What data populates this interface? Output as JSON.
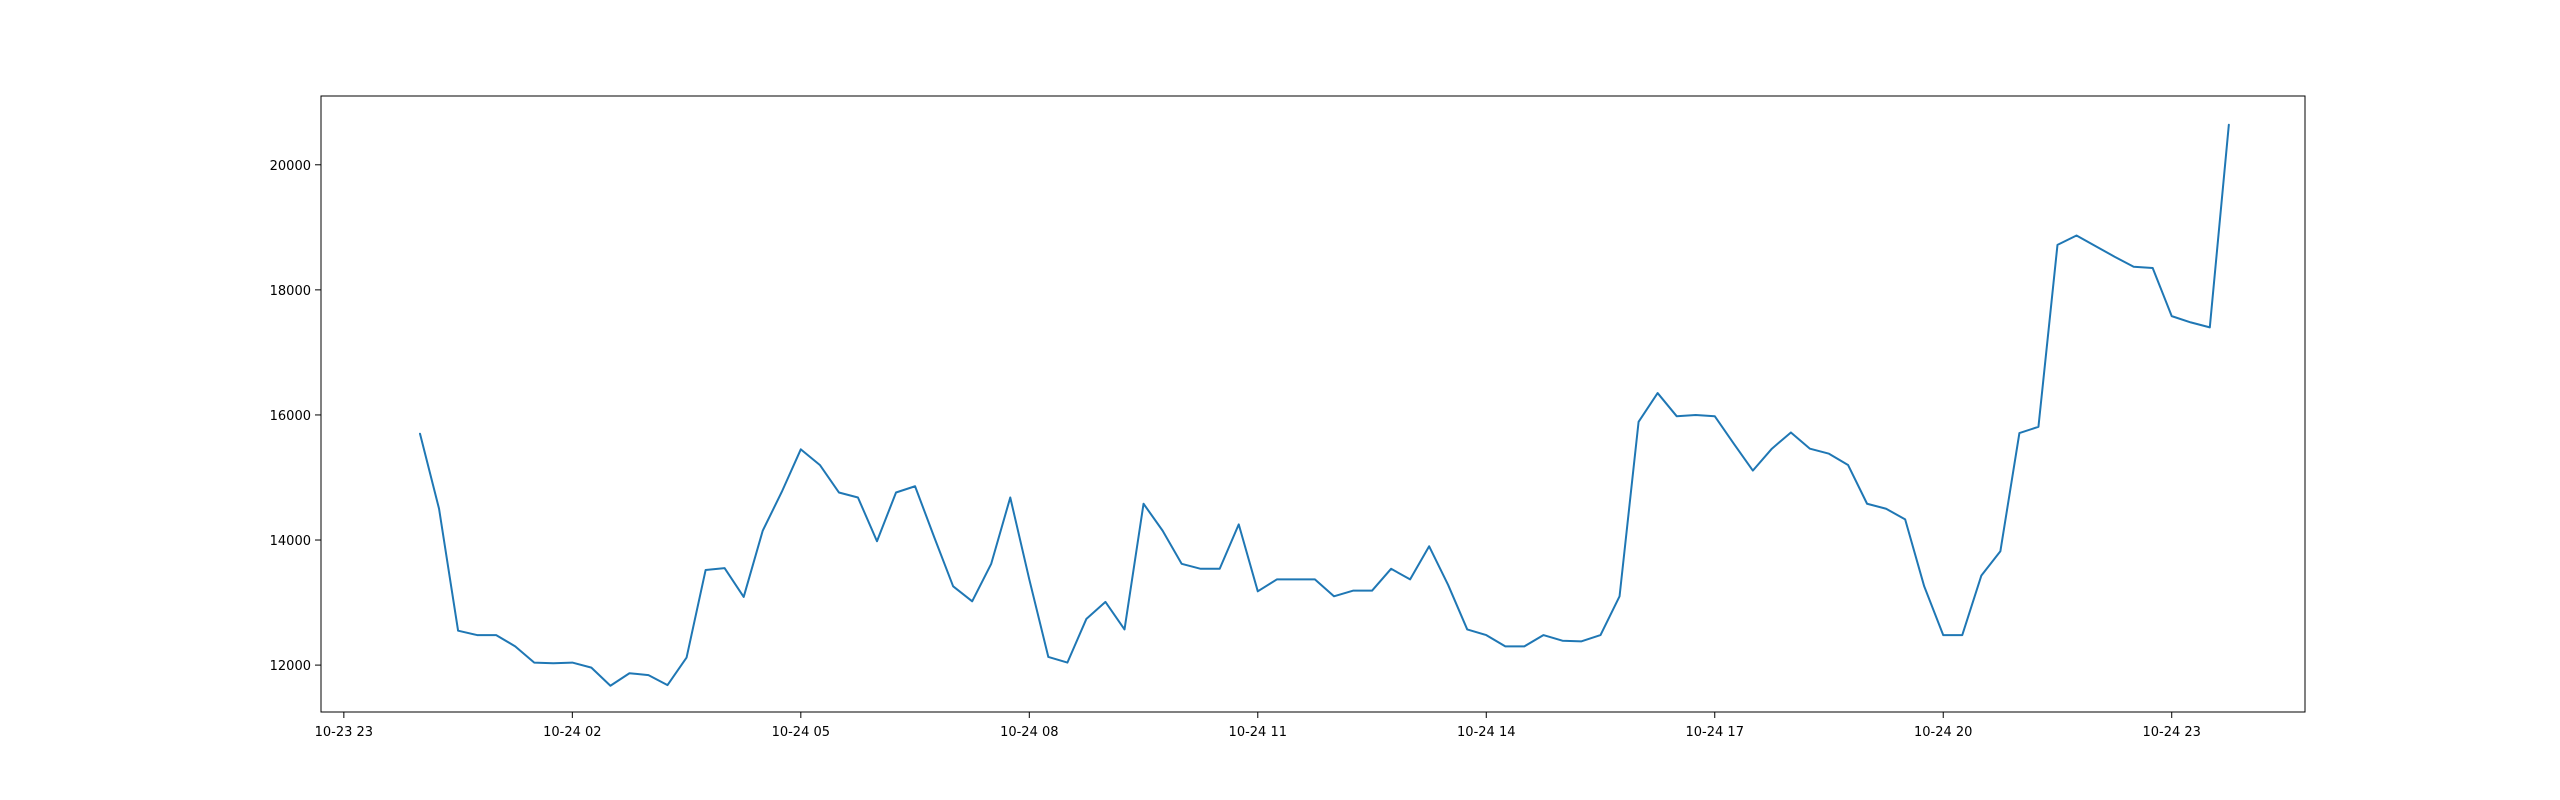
{
  "chart_data": {
    "type": "line",
    "title": "",
    "xlabel": "",
    "ylabel": "",
    "x_unit": "hours",
    "xlim": [
      -0.3,
      25.75
    ],
    "ylim": [
      11250,
      21100
    ],
    "grid": false,
    "legend": "none",
    "colors": {
      "line": "#1f77b4",
      "axis": "#000000",
      "background": "#ffffff"
    },
    "x_ticks": [
      {
        "value": 0,
        "label": "10-23 23"
      },
      {
        "value": 3,
        "label": "10-24 02"
      },
      {
        "value": 6,
        "label": "10-24 05"
      },
      {
        "value": 9,
        "label": "10-24 08"
      },
      {
        "value": 12,
        "label": "10-24 11"
      },
      {
        "value": 15,
        "label": "10-24 14"
      },
      {
        "value": 18,
        "label": "10-24 17"
      },
      {
        "value": 21,
        "label": "10-24 20"
      },
      {
        "value": 24,
        "label": "10-24 23"
      }
    ],
    "y_ticks": [
      {
        "value": 12000,
        "label": "12000"
      },
      {
        "value": 14000,
        "label": "14000"
      },
      {
        "value": 16000,
        "label": "16000"
      },
      {
        "value": 18000,
        "label": "18000"
      },
      {
        "value": 20000,
        "label": "20000"
      }
    ],
    "series": [
      {
        "x": [
          1.0,
          1.25,
          1.5,
          1.75,
          2.0,
          2.25,
          2.5,
          2.75,
          3.0,
          3.25,
          3.5,
          3.75,
          4.0,
          4.25,
          4.5,
          4.75,
          5.0,
          5.25,
          5.5,
          5.75,
          6.0,
          6.25,
          6.5,
          6.75,
          7.0,
          7.25,
          7.5,
          7.75,
          8.0,
          8.25,
          8.5,
          8.75,
          9.0,
          9.25,
          9.5,
          9.75,
          10.0,
          10.25,
          10.5,
          10.75,
          11.0,
          11.25,
          11.5,
          11.75,
          12.0,
          12.25,
          12.5,
          12.75,
          13.0,
          13.25,
          13.5,
          13.75,
          14.0,
          14.25,
          14.5,
          14.75,
          15.0,
          15.25,
          15.5,
          15.75,
          16.0,
          16.25,
          16.5,
          16.75,
          17.0,
          17.25,
          17.5,
          17.75,
          18.0,
          18.25,
          18.5,
          18.75,
          19.0,
          19.25,
          19.5,
          19.75,
          20.0,
          20.25,
          20.5,
          20.75,
          21.0,
          21.25,
          21.5,
          21.75,
          22.0,
          22.25,
          22.5,
          22.75,
          23.0,
          23.25,
          23.5,
          23.75,
          24.0,
          24.25,
          24.5,
          24.75
        ],
        "values": [
          15700,
          14500,
          12550,
          12480,
          12480,
          12300,
          12040,
          12030,
          12040,
          11960,
          11670,
          11870,
          11840,
          11680,
          12120,
          13520,
          13550,
          13090,
          14150,
          14770,
          15450,
          15200,
          14760,
          14680,
          13980,
          14760,
          14860,
          14050,
          13260,
          13020,
          13620,
          14680,
          13370,
          12130,
          12040,
          12740,
          13010,
          12570,
          14580,
          14150,
          13620,
          13540,
          13540,
          14250,
          13180,
          13370,
          13370,
          13370,
          13100,
          13190,
          13190,
          13540,
          13370,
          13900,
          13280,
          12570,
          12480,
          12300,
          12300,
          12480,
          12390,
          12380,
          12480,
          13100,
          15890,
          16350,
          15980,
          16000,
          15980,
          15540,
          15110,
          15460,
          15720,
          15460,
          15380,
          15200,
          14580,
          14500,
          14330,
          13260,
          12480,
          12480,
          13430,
          13820,
          15710,
          15810,
          18720,
          18870,
          18700,
          18530,
          18370,
          18350,
          17580,
          17480,
          17400,
          20640
        ]
      }
    ]
  }
}
